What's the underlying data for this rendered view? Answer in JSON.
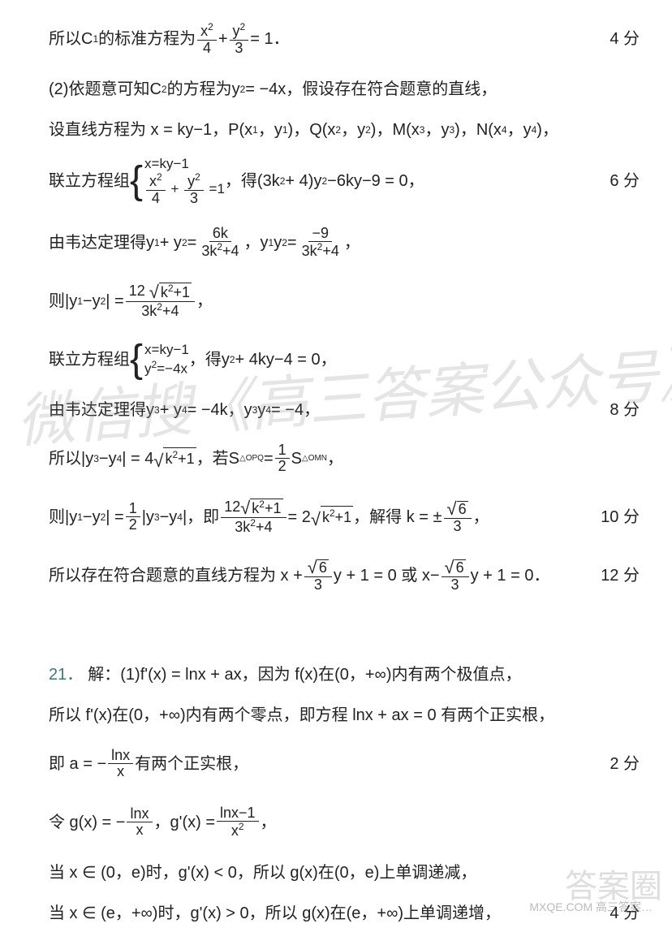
{
  "lines": {
    "l1_pre": "所以C",
    "l1_sub": "1",
    "l1_mid": "的标准方程为",
    "l1_f1n": "x",
    "l1_f1n_sup": "2",
    "l1_f1d": "4",
    "l1_plus": " + ",
    "l1_f2n": "y",
    "l1_f2n_sup": "2",
    "l1_f2d": "3",
    "l1_eq": " = 1．",
    "l1_score": "4 分",
    "l2": "(2)依题意可知C",
    "l2_sub": "2",
    "l2_mid": "的方程为y",
    "l2_sup": "2",
    "l2_tail": " = −4x，假设存在符合题意的直线，",
    "l3_a": "设直线方程为 x = ky−1，P(x",
    "l3_s1": "1",
    "l3_b": "，y",
    "l3_s2": "1",
    "l3_c": ")，Q(x",
    "l3_s3": "2",
    "l3_d": "，y",
    "l3_s4": "2",
    "l3_e": ")，M(x",
    "l3_s5": "3",
    "l3_f": "，y",
    "l3_s6": "3",
    "l3_g": ")，N(x",
    "l3_s7": "4",
    "l3_h": "，y",
    "l3_s8": "4",
    "l3_i": ")，",
    "l4_pre": "联立方程组",
    "l4_r1": "x=ky−1",
    "l4_r2a": "x",
    "l4_r2a_sup": "2",
    "l4_r2a_d": "4",
    "l4_r2_plus": "+",
    "l4_r2b": "y",
    "l4_r2b_sup": "2",
    "l4_r2b_d": "3",
    "l4_r2_eq": "=1",
    "l4_mid": "，得(3k",
    "l4_sup": "2",
    "l4_tail": " + 4)y",
    "l4_sup2": "2",
    "l4_end": "−6ky−9 = 0，",
    "l4_score": "6 分",
    "l5_pre": "由韦达定理得y",
    "l5_s1": "1",
    "l5_a": " + y",
    "l5_s2": "2",
    "l5_eq": " = ",
    "l5_f1n": "6k",
    "l5_f1d_a": "3k",
    "l5_f1d_sup": "2",
    "l5_f1d_b": "+4",
    "l5_comma": "，y",
    "l5_s3": "1",
    "l5_b": "y",
    "l5_s4": "2",
    "l5_eq2": " = ",
    "l5_f2n": "−9",
    "l5_f2d_a": "3k",
    "l5_f2d_sup": "2",
    "l5_f2d_b": "+4",
    "l5_end": "，",
    "l6_pre": "则|y",
    "l6_s1": "1",
    "l6_a": "−y",
    "l6_s2": "2",
    "l6_eq": "| = ",
    "l6_fn_12": "12",
    "l6_fn_rad": "k",
    "l6_fn_rad_sup": "2",
    "l6_fn_rad_b": "+1",
    "l6_fd_a": "3k",
    "l6_fd_sup": "2",
    "l6_fd_b": "+4",
    "l6_end": "，",
    "l7_pre": "联立方程组",
    "l7_r1": "x=ky−1",
    "l7_r2": "y",
    "l7_r2_sup": "2",
    "l7_r2_b": "=−4x",
    "l7_mid": "，得y",
    "l7_sup": "2",
    "l7_tail": " + 4ky−4 = 0，",
    "l8_pre": "由韦达定理得y",
    "l8_s1": "3",
    "l8_a": " + y",
    "l8_s2": "4",
    "l8_eq": " = −4k，y",
    "l8_s3": "3",
    "l8_b": "y",
    "l8_s4": "4",
    "l8_end": " = −4，",
    "l8_score": "8 分",
    "l9_pre": "所以|y",
    "l9_s1": "3",
    "l9_a": "−y",
    "l9_s2": "4",
    "l9_eq": "| = 4",
    "l9_rad": "k",
    "l9_rad_sup": "2",
    "l9_rad_b": "+1",
    "l9_mid": "，若S",
    "l9_sub1": "△OPQ",
    "l9_eq2": " = ",
    "l9_half_n": "1",
    "l9_half_d": "2",
    "l9_s": "S",
    "l9_sub2": "△OMN",
    "l9_end": "，",
    "l10_pre": "则|y",
    "l10_s1": "1",
    "l10_a": "−y",
    "l10_s2": "2",
    "l10_eq": "| = ",
    "l10_hn": "1",
    "l10_hd": "2",
    "l10_b": "|y",
    "l10_s3": "3",
    "l10_c": "−y",
    "l10_s4": "4",
    "l10_d": "|，即",
    "l10_fn_12": "12",
    "l10_fn_rad": "k",
    "l10_fn_rad_sup": "2",
    "l10_fn_rad_b": "+1",
    "l10_fd_a": "3k",
    "l10_fd_sup": "2",
    "l10_fd_b": "+4",
    "l10_eq2": " = 2",
    "l10_rad2": "k",
    "l10_rad2_sup": "2",
    "l10_rad2_b": "+1",
    "l10_mid": "，解得 k = ±",
    "l10_rn": "6",
    "l10_rd": "3",
    "l10_end": "，",
    "l10_score": "10 分",
    "l11_pre": "所以存在符合题意的直线方程为 x + ",
    "l11_rn": "6",
    "l11_rd": "3",
    "l11_a": "y + 1 = 0 或 x−",
    "l11_rn2": "6",
    "l11_rd2": "3",
    "l11_b": "y + 1 = 0．",
    "l11_score": "12 分",
    "q21": "21．",
    "l12_a": "解：(1)f'(x) = lnx + ax，因为 f(x)在(0，+∞)内有两个极值点，",
    "l13": "所以 f'(x)在(0，+∞)内有两个零点，即方程 lnx + ax = 0 有两个正实根，",
    "l14_pre": "即 a = −",
    "l14_fn": "lnx",
    "l14_fd": "x",
    "l14_end": "有两个正实根，",
    "l14_score": "2 分",
    "l15_pre": "令 g(x) = −",
    "l15_fn": "lnx",
    "l15_fd": "x",
    "l15_mid": "，g'(x) = ",
    "l15_f2n": "lnx−1",
    "l15_f2d": "x",
    "l15_f2d_sup": "2",
    "l15_end": "，",
    "l16": "当 x ∈ (0，e)时，g'(x) < 0，所以 g(x)在(0，e)上单调递减，",
    "l17": "当 x ∈ (e，+∞)时，g'(x) > 0，所以 g(x)在(e，+∞)上单调递增，",
    "l17_score": "4 分"
  },
  "watermark": {
    "main": "微信搜《高三答案公众号》",
    "corner": "答案圈",
    "sub": "MXQE.COM   高三答案…"
  },
  "colors": {
    "text": "#222222",
    "qnum": "#3a7a7a",
    "bg": "#ffffff",
    "wm": "rgba(150,150,150,0.25)"
  }
}
